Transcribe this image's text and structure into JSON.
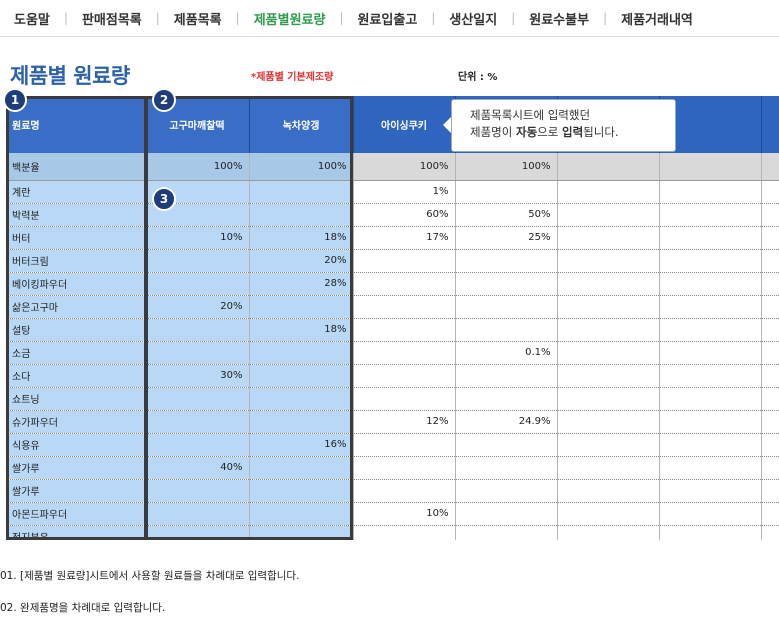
{
  "nav": {
    "items": [
      "도움말",
      "판매점목록",
      "제품목록",
      "제품별원료량",
      "원료입출고",
      "생산일지",
      "원료수불부",
      "제품거래내역"
    ],
    "active_index": 3
  },
  "header": {
    "title": "제품별 원료량",
    "basis_note": "*제품별 기본제조량",
    "unit_label": "단위 : %"
  },
  "badges": [
    "1",
    "2",
    "3"
  ],
  "tooltip": {
    "line1": "제품목록시트에 입력했던",
    "line2_prefix": "제품명이 ",
    "line2_bold1": "자동",
    "line2_mid": "으로 ",
    "line2_bold2": "입력",
    "line2_suffix": "됩니다."
  },
  "grid": {
    "headers": [
      "원료명",
      "고구마깨찰떡",
      "녹차양갱",
      "아이싱쿠키",
      "",
      "",
      "",
      ""
    ],
    "percent_row": [
      "백분율",
      "100%",
      "100%",
      "100%",
      "100%",
      "",
      "",
      ""
    ],
    "rows": [
      [
        "계란",
        "",
        "",
        "1%",
        "",
        "",
        "",
        ""
      ],
      [
        "박력분",
        "",
        "",
        "60%",
        "50%",
        "",
        "",
        ""
      ],
      [
        "버터",
        "10%",
        "18%",
        "17%",
        "25%",
        "",
        "",
        ""
      ],
      [
        "버터크림",
        "",
        "20%",
        "",
        "",
        "",
        "",
        ""
      ],
      [
        "베이킹파우더",
        "",
        "28%",
        "",
        "",
        "",
        "",
        ""
      ],
      [
        "삶은고구마",
        "20%",
        "",
        "",
        "",
        "",
        "",
        ""
      ],
      [
        "설탕",
        "",
        "18%",
        "",
        "",
        "",
        "",
        ""
      ],
      [
        "소금",
        "",
        "",
        "",
        "0.1%",
        "",
        "",
        ""
      ],
      [
        "소다",
        "30%",
        "",
        "",
        "",
        "",
        "",
        ""
      ],
      [
        "쇼트닝",
        "",
        "",
        "",
        "",
        "",
        "",
        ""
      ],
      [
        "슈가파우더",
        "",
        "",
        "12%",
        "24.9%",
        "",
        "",
        ""
      ],
      [
        "식용유",
        "",
        "16%",
        "",
        "",
        "",
        "",
        ""
      ],
      [
        "쌀가루",
        "40%",
        "",
        "",
        "",
        "",
        "",
        ""
      ],
      [
        "쌀가루",
        "",
        "",
        "",
        "",
        "",
        "",
        ""
      ],
      [
        "아몬드파우더",
        "",
        "",
        "10%",
        "",
        "",
        "",
        ""
      ],
      [
        "전지분유",
        "",
        "",
        "",
        "",
        "",
        "",
        ""
      ]
    ]
  },
  "notes": [
    "01. [제품별 원료량]시트에서 사용할 원료들을 차례대로 입력합니다.",
    "02. 완제품명을 차례대로 입력합니다."
  ]
}
